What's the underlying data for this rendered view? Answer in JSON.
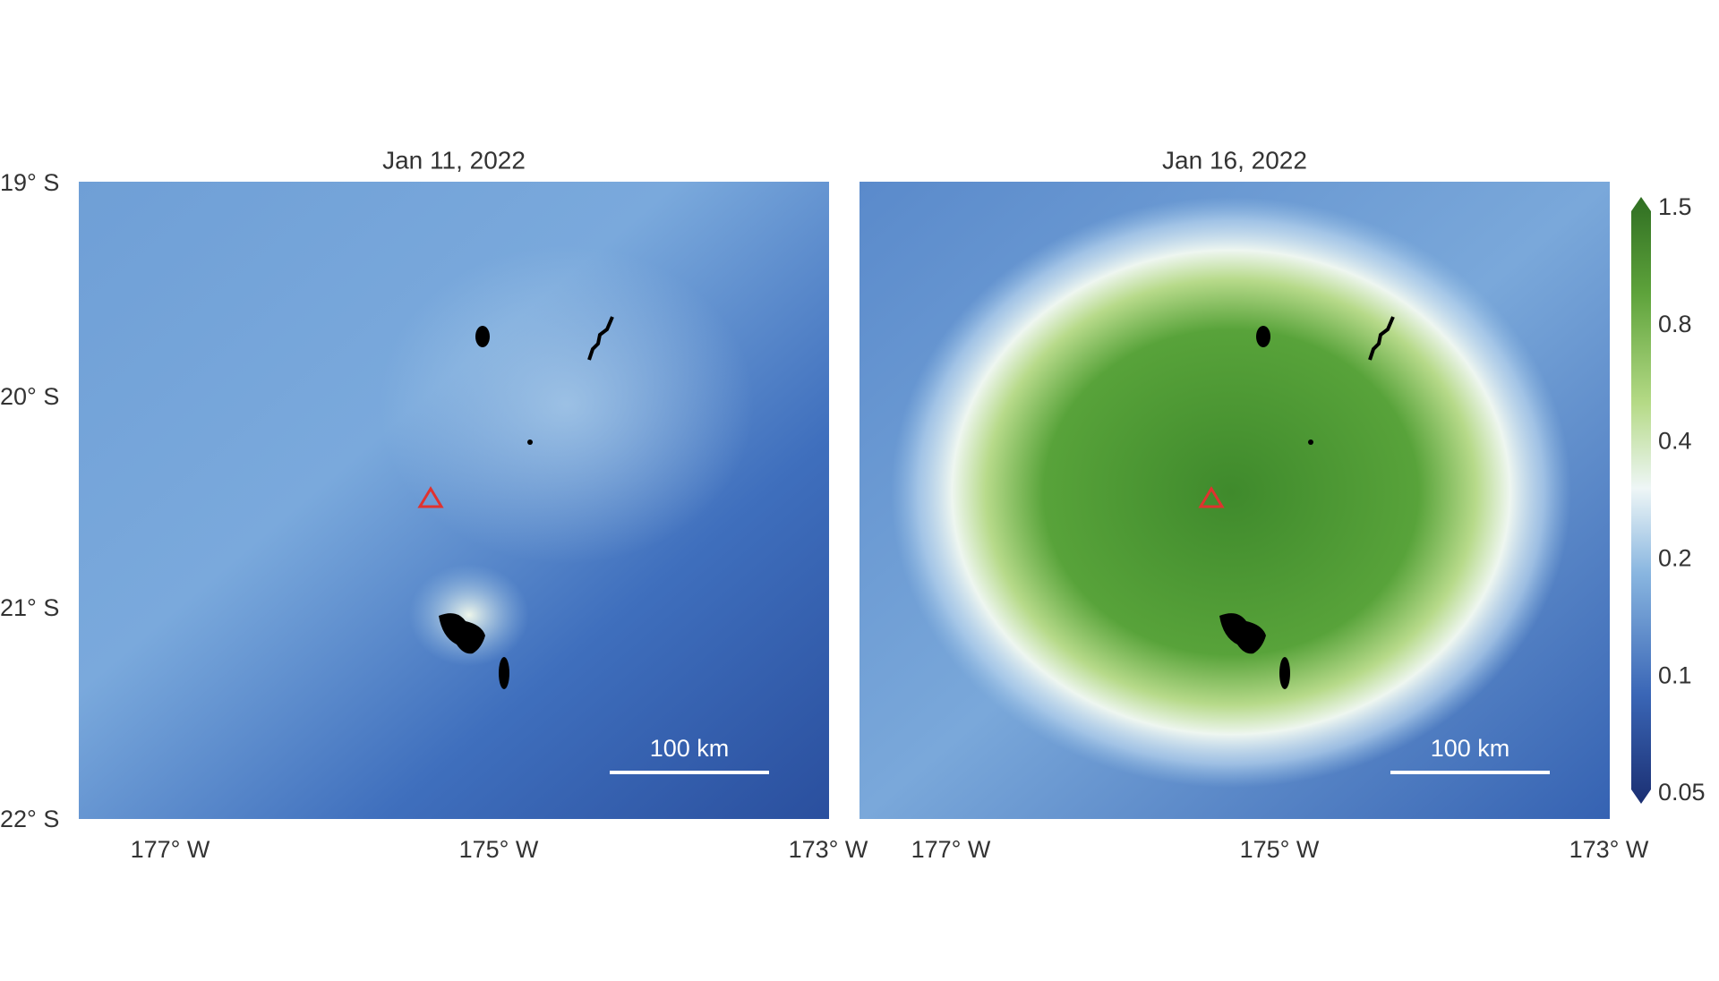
{
  "panels": [
    {
      "title": "Jan 11, 2022",
      "scale_bar": "100 km",
      "lon_labels": [
        "177° W",
        "175° W",
        "173° W"
      ]
    },
    {
      "title": "Jan 16, 2022",
      "scale_bar": "100 km",
      "lon_labels": [
        "177° W",
        "175° W",
        "173° W"
      ]
    }
  ],
  "lat_labels": [
    "19° S",
    "20° S",
    "21° S",
    "22° S"
  ],
  "colorbar": {
    "ticks": [
      "1.5",
      "0.8",
      "0.4",
      "0.2",
      "0.1",
      "0.05"
    ]
  }
}
